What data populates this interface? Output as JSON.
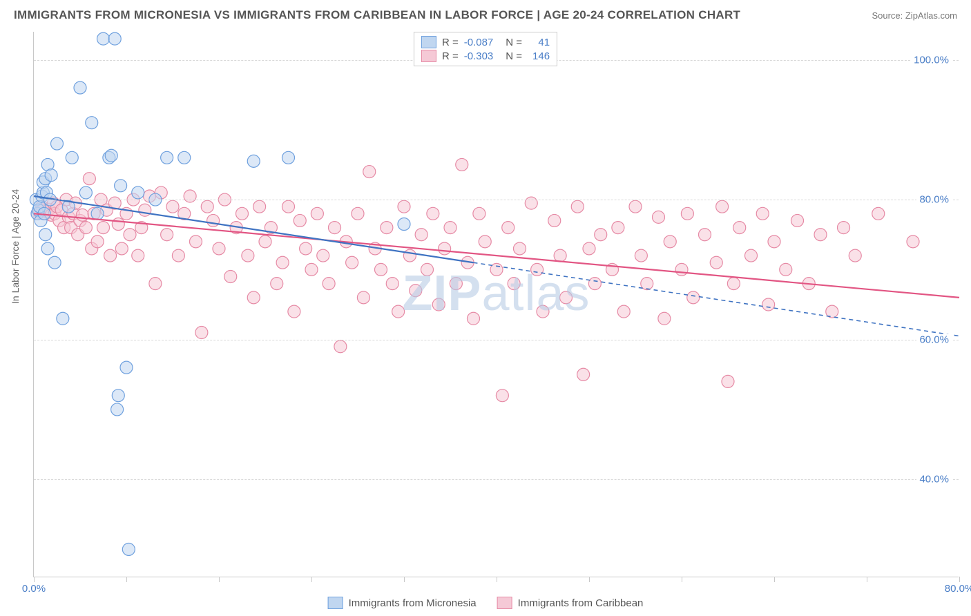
{
  "title": "IMMIGRANTS FROM MICRONESIA VS IMMIGRANTS FROM CARIBBEAN IN LABOR FORCE | AGE 20-24 CORRELATION CHART",
  "source": "Source: ZipAtlas.com",
  "ylabel": "In Labor Force | Age 20-24",
  "watermark": {
    "a": "ZIP",
    "b": "atlas"
  },
  "chart": {
    "type": "scatter",
    "xlim": [
      0,
      80
    ],
    "ylim": [
      26,
      104
    ],
    "yticks": [
      40,
      60,
      80,
      100
    ],
    "ytick_labels": [
      "40.0%",
      "60.0%",
      "80.0%",
      "100.0%"
    ],
    "xtick_marks": [
      0,
      8,
      16,
      24,
      32,
      40,
      48,
      56,
      64,
      72,
      80
    ],
    "xtick_labels": [
      {
        "x": 0,
        "label": "0.0%"
      },
      {
        "x": 80,
        "label": "80.0%"
      }
    ],
    "grid_color": "#d8d8d8",
    "axis_color": "#c8c8c8",
    "background_color": "#ffffff",
    "marker_radius": 9,
    "marker_stroke_width": 1.2,
    "line_width": 2.2
  },
  "series": {
    "micronesia": {
      "label": "Immigrants from Micronesia",
      "R": "-0.087",
      "N": "41",
      "fill": "#c0d6f0",
      "stroke": "#6ea0de",
      "line_color": "#3f73c2",
      "trend": {
        "x1": 0,
        "y1": 80.5,
        "x2": 38,
        "y2": 71.0
      },
      "trend_ext": {
        "x1": 38,
        "y1": 71.0,
        "x2": 80,
        "y2": 60.5
      },
      "points": [
        [
          0.2,
          80
        ],
        [
          0.3,
          78
        ],
        [
          0.4,
          78.5
        ],
        [
          0.5,
          79
        ],
        [
          0.6,
          77
        ],
        [
          0.7,
          80.5
        ],
        [
          0.8,
          81
        ],
        [
          0.8,
          82.5
        ],
        [
          0.9,
          78
        ],
        [
          1.0,
          75
        ],
        [
          1.0,
          83
        ],
        [
          1.1,
          81
        ],
        [
          1.2,
          85
        ],
        [
          1.2,
          73
        ],
        [
          1.4,
          80
        ],
        [
          1.5,
          83.5
        ],
        [
          1.8,
          71
        ],
        [
          2.0,
          88
        ],
        [
          2.5,
          63
        ],
        [
          3.0,
          79
        ],
        [
          3.3,
          86
        ],
        [
          4.0,
          96
        ],
        [
          4.5,
          81
        ],
        [
          5.0,
          91
        ],
        [
          5.5,
          78
        ],
        [
          6.0,
          103
        ],
        [
          6.5,
          86
        ],
        [
          6.7,
          86.3
        ],
        [
          7.0,
          103
        ],
        [
          7.2,
          50
        ],
        [
          7.3,
          52
        ],
        [
          7.5,
          82
        ],
        [
          8.0,
          56
        ],
        [
          8.2,
          30
        ],
        [
          9.0,
          81
        ],
        [
          10.5,
          80
        ],
        [
          11.5,
          86
        ],
        [
          13.0,
          86
        ],
        [
          19.0,
          85.5
        ],
        [
          22.0,
          86
        ],
        [
          32.0,
          76.5
        ]
      ]
    },
    "caribbean": {
      "label": "Immigrants from Caribbean",
      "R": "-0.303",
      "N": "146",
      "fill": "#f5c9d6",
      "stroke": "#e68aa5",
      "line_color": "#e25583",
      "trend": {
        "x1": 0,
        "y1": 78.0,
        "x2": 80,
        "y2": 66.0
      },
      "points": [
        [
          0.3,
          78
        ],
        [
          0.5,
          78.2
        ],
        [
          0.7,
          79
        ],
        [
          0.8,
          78.5
        ],
        [
          1.0,
          78
        ],
        [
          1.1,
          78.3
        ],
        [
          1.3,
          78.6
        ],
        [
          1.5,
          77.8
        ],
        [
          1.7,
          79.5
        ],
        [
          1.8,
          78
        ],
        [
          2.0,
          79
        ],
        [
          2.2,
          77
        ],
        [
          2.4,
          78.5
        ],
        [
          2.6,
          76
        ],
        [
          2.8,
          80
        ],
        [
          3.0,
          77.5
        ],
        [
          3.2,
          76
        ],
        [
          3.4,
          78
        ],
        [
          3.6,
          79.5
        ],
        [
          3.8,
          75
        ],
        [
          4.0,
          77
        ],
        [
          4.2,
          77.8
        ],
        [
          4.5,
          76
        ],
        [
          4.8,
          83
        ],
        [
          5.0,
          73
        ],
        [
          5.2,
          78
        ],
        [
          5.5,
          74
        ],
        [
          5.8,
          80
        ],
        [
          6.0,
          76
        ],
        [
          6.3,
          78.5
        ],
        [
          6.6,
          72
        ],
        [
          7.0,
          79.5
        ],
        [
          7.3,
          76.5
        ],
        [
          7.6,
          73
        ],
        [
          8.0,
          78
        ],
        [
          8.3,
          75
        ],
        [
          8.6,
          80
        ],
        [
          9.0,
          72
        ],
        [
          9.3,
          76
        ],
        [
          9.6,
          78.5
        ],
        [
          10.0,
          80.5
        ],
        [
          10.5,
          68
        ],
        [
          11.0,
          81
        ],
        [
          11.5,
          75
        ],
        [
          12.0,
          79
        ],
        [
          12.5,
          72
        ],
        [
          13.0,
          78
        ],
        [
          13.5,
          80.5
        ],
        [
          14.0,
          74
        ],
        [
          14.5,
          61
        ],
        [
          15.0,
          79
        ],
        [
          15.5,
          77
        ],
        [
          16.0,
          73
        ],
        [
          16.5,
          80
        ],
        [
          17.0,
          69
        ],
        [
          17.5,
          76
        ],
        [
          18.0,
          78
        ],
        [
          18.5,
          72
        ],
        [
          19.0,
          66
        ],
        [
          19.5,
          79
        ],
        [
          20.0,
          74
        ],
        [
          20.5,
          76
        ],
        [
          21.0,
          68
        ],
        [
          21.5,
          71
        ],
        [
          22.0,
          79
        ],
        [
          22.5,
          64
        ],
        [
          23.0,
          77
        ],
        [
          23.5,
          73
        ],
        [
          24.0,
          70
        ],
        [
          24.5,
          78
        ],
        [
          25.0,
          72
        ],
        [
          25.5,
          68
        ],
        [
          26.0,
          76
        ],
        [
          26.5,
          59
        ],
        [
          27.0,
          74
        ],
        [
          27.5,
          71
        ],
        [
          28.0,
          78
        ],
        [
          28.5,
          66
        ],
        [
          29.0,
          84
        ],
        [
          29.5,
          73
        ],
        [
          30.0,
          70
        ],
        [
          30.5,
          76
        ],
        [
          31.0,
          68
        ],
        [
          31.5,
          64
        ],
        [
          32.0,
          79
        ],
        [
          32.5,
          72
        ],
        [
          33.0,
          67
        ],
        [
          33.5,
          75
        ],
        [
          34.0,
          70
        ],
        [
          34.5,
          78
        ],
        [
          35.0,
          65
        ],
        [
          35.5,
          73
        ],
        [
          36.0,
          76
        ],
        [
          36.5,
          68
        ],
        [
          37.0,
          85
        ],
        [
          37.5,
          71
        ],
        [
          38.0,
          63
        ],
        [
          38.5,
          78
        ],
        [
          39.0,
          74
        ],
        [
          40.0,
          70
        ],
        [
          40.5,
          52
        ],
        [
          41.0,
          76
        ],
        [
          41.5,
          68
        ],
        [
          42.0,
          73
        ],
        [
          43.0,
          79.5
        ],
        [
          43.5,
          70
        ],
        [
          44.0,
          64
        ],
        [
          45.0,
          77
        ],
        [
          45.5,
          72
        ],
        [
          46.0,
          66
        ],
        [
          47.0,
          79
        ],
        [
          47.5,
          55
        ],
        [
          48.0,
          73
        ],
        [
          48.5,
          68
        ],
        [
          49.0,
          75
        ],
        [
          50.0,
          70
        ],
        [
          50.5,
          76
        ],
        [
          51.0,
          64
        ],
        [
          52.0,
          79
        ],
        [
          52.5,
          72
        ],
        [
          53.0,
          68
        ],
        [
          54.0,
          77.5
        ],
        [
          54.5,
          63
        ],
        [
          55.0,
          74
        ],
        [
          56.0,
          70
        ],
        [
          56.5,
          78
        ],
        [
          57.0,
          66
        ],
        [
          58.0,
          75
        ],
        [
          59.0,
          71
        ],
        [
          59.5,
          79
        ],
        [
          60.0,
          54
        ],
        [
          60.5,
          68
        ],
        [
          61.0,
          76
        ],
        [
          62.0,
          72
        ],
        [
          63.0,
          78
        ],
        [
          63.5,
          65
        ],
        [
          64.0,
          74
        ],
        [
          65.0,
          70
        ],
        [
          66.0,
          77
        ],
        [
          67.0,
          68
        ],
        [
          68.0,
          75
        ],
        [
          69.0,
          64
        ],
        [
          70.0,
          76
        ],
        [
          71.0,
          72
        ],
        [
          73.0,
          78
        ],
        [
          76.0,
          74
        ]
      ]
    }
  }
}
